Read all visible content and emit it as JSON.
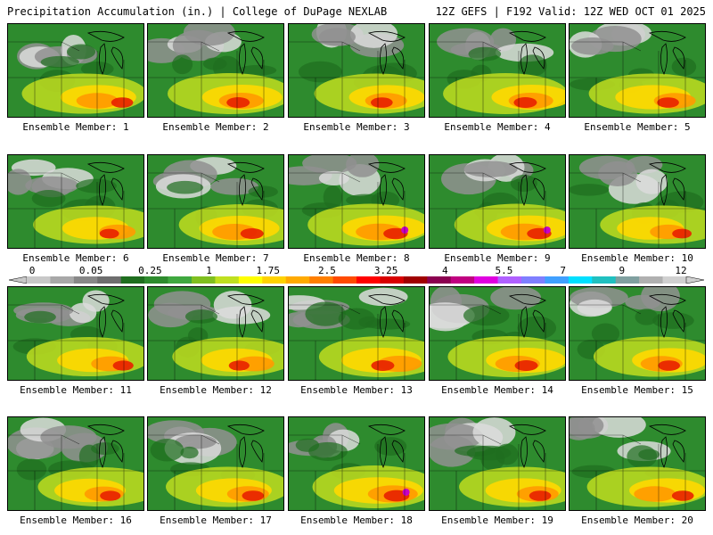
{
  "header": {
    "title_left": "Precipitation Accumulation (in.) | College of DuPage NEXLAB",
    "title_right": "12Z GEFS | F192 Valid: 12Z WED OCT 01 2025"
  },
  "members": [
    {
      "label": "Ensemble Member: 1",
      "heavy": 0.45
    },
    {
      "label": "Ensemble Member: 2",
      "heavy": 0.5
    },
    {
      "label": "Ensemble Member: 3",
      "heavy": 0.45
    },
    {
      "label": "Ensemble Member: 4",
      "heavy": 0.5
    },
    {
      "label": "Ensemble Member: 5",
      "heavy": 0.45
    },
    {
      "label": "Ensemble Member: 6",
      "heavy": 0.35
    },
    {
      "label": "Ensemble Member: 7",
      "heavy": 0.5
    },
    {
      "label": "Ensemble Member: 8",
      "heavy": 0.55
    },
    {
      "label": "Ensemble Member: 9",
      "heavy": 0.55
    },
    {
      "label": "Ensemble Member: 10",
      "heavy": 0.35
    },
    {
      "label": "Ensemble Member: 11",
      "heavy": 0.4
    },
    {
      "label": "Ensemble Member: 12",
      "heavy": 0.4
    },
    {
      "label": "Ensemble Member: 13",
      "heavy": 0.5
    },
    {
      "label": "Ensemble Member: 14",
      "heavy": 0.5
    },
    {
      "label": "Ensemble Member: 15",
      "heavy": 0.45
    },
    {
      "label": "Ensemble Member: 16",
      "heavy": 0.4
    },
    {
      "label": "Ensemble Member: 17",
      "heavy": 0.45
    },
    {
      "label": "Ensemble Member: 18",
      "heavy": 0.6
    },
    {
      "label": "Ensemble Member: 19",
      "heavy": 0.45
    },
    {
      "label": "Ensemble Member: 20",
      "heavy": 0.45
    }
  ],
  "colorbar": {
    "labels": [
      "0",
      "0.05",
      "0.25",
      "1",
      "1.75",
      "2.5",
      "3.25",
      "4",
      "5.5",
      "7",
      "9",
      "12"
    ],
    "colors": [
      "#c8c8c8",
      "#a8a8a8",
      "#888888",
      "#6e6e6e",
      "#1f6e1f",
      "#2e8b2e",
      "#3fa83f",
      "#7fbf1f",
      "#bfe020",
      "#ffff00",
      "#ffd200",
      "#ffaa00",
      "#ff7f00",
      "#ff4a00",
      "#ff0000",
      "#d80000",
      "#a00000",
      "#8b0050",
      "#c00080",
      "#e000e0",
      "#b060ff",
      "#7f7fff",
      "#40a0ff",
      "#00e0ff",
      "#20c0c0",
      "#80a0a0",
      "#b0b0b0",
      "#d0d0d0"
    ]
  },
  "legend_palette": {
    "gray_light": "#dcdcdc",
    "gray_dark": "#909090",
    "green_dark": "#1f6e1f",
    "green": "#2e8b2e",
    "yellow_green": "#b8d820",
    "yellow": "#ffd800",
    "orange": "#ff9a00",
    "red": "#e82000",
    "magenta": "#c800c8"
  }
}
